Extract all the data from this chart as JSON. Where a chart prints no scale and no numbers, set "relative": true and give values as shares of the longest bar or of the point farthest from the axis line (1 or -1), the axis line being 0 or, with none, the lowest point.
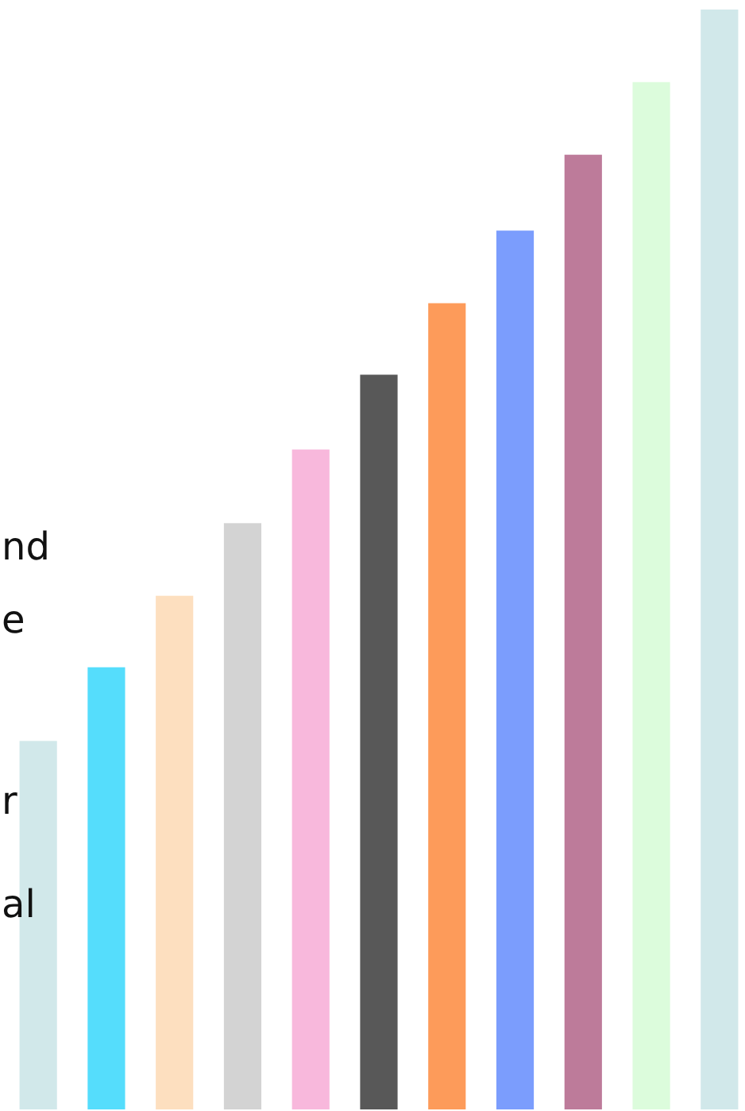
{
  "chart_data": {
    "type": "bar",
    "relative": true,
    "categories": [
      null,
      null,
      null,
      null,
      null,
      null,
      null,
      null,
      null,
      null,
      null
    ],
    "values": [
      0.335,
      0.402,
      0.467,
      0.533,
      0.6,
      0.668,
      0.733,
      0.799,
      0.868,
      0.934,
      1
    ],
    "colors": [
      "#d1e8ea",
      "#55ddfc",
      "#fddfbf",
      "#d3d3d3",
      "#f8b8dc",
      "#585858",
      "#fd9b5a",
      "#7b9dfd",
      "#bd7b9a",
      "#dcfcdc",
      "#d1e8ea"
    ],
    "annotations": [
      "nd",
      "e",
      "r",
      "al"
    ]
  }
}
